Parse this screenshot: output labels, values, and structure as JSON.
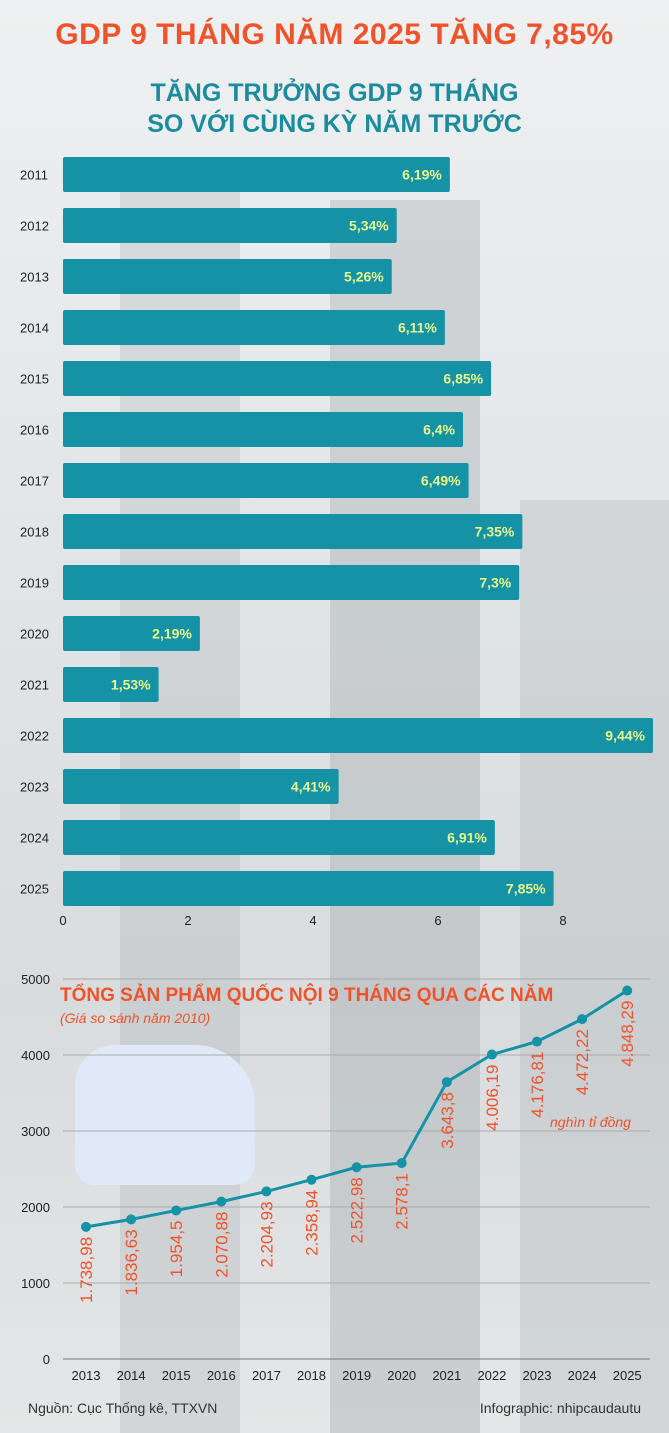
{
  "header": {
    "title": "GDP 9 THÁNG NĂM 2025 TĂNG 7,85%"
  },
  "colors": {
    "accent": "#f0532a",
    "teal": "#1592a6",
    "bar_label": "#e8f58a",
    "line": "#1592a6"
  },
  "chart_data": [
    {
      "type": "bar",
      "orientation": "horizontal",
      "title": "TĂNG TRƯỞNG GDP 9 THÁNG SO VỚI CÙNG KỲ NĂM TRƯỚC",
      "title_lines": [
        "TĂNG TRƯỞNG GDP 9 THÁNG",
        "SO VỚI CÙNG KỲ NĂM TRƯỚC"
      ],
      "categories": [
        "2011",
        "2012",
        "2013",
        "2014",
        "2015",
        "2016",
        "2017",
        "2018",
        "2019",
        "2020",
        "2021",
        "2022",
        "2023",
        "2024",
        "2025"
      ],
      "values": [
        6.19,
        5.34,
        5.26,
        6.11,
        6.85,
        6.4,
        6.49,
        7.35,
        7.3,
        2.19,
        1.53,
        9.44,
        4.41,
        6.91,
        7.85
      ],
      "data_labels": [
        "6,19%",
        "5,34%",
        "5,26%",
        "6,11%",
        "6,85%",
        "6,4%",
        "6,49%",
        "7,35%",
        "7,3%",
        "2,19%",
        "1,53%",
        "9,44%",
        "4,41%",
        "6,91%",
        "7,85%"
      ],
      "xticks": [
        "0",
        "2",
        "4",
        "6",
        "8"
      ],
      "xlim": [
        0,
        9.6
      ],
      "grid": false
    },
    {
      "type": "line",
      "title": "TỔNG SẢN PHẨM QUỐC NỘI 9 THÁNG QUA CÁC NĂM",
      "subtitle": "(Giá so sánh năm 2010)",
      "unit": "nghìn tỉ đồng",
      "x": [
        "2013",
        "2014",
        "2015",
        "2016",
        "2017",
        "2018",
        "2019",
        "2020",
        "2021",
        "2022",
        "2023",
        "2024",
        "2025"
      ],
      "values": [
        1738.98,
        1836.63,
        1954.5,
        2070.88,
        2204.93,
        2358.94,
        2522.98,
        2578.1,
        3643.8,
        4006.19,
        4176.81,
        4472.22,
        4848.29
      ],
      "data_labels": [
        "1.738,98",
        "1.836,63",
        "1.954,5",
        "2.070,88",
        "2.204,93",
        "2.358,94",
        "2.522,98",
        "2.578,1",
        "3.643,8",
        "4.006,19",
        "4.176,81",
        "4.472,22",
        "4.848,29"
      ],
      "yticks": [
        "0",
        "1000",
        "2000",
        "3000",
        "4000",
        "5000"
      ],
      "ylim": [
        0,
        5000
      ],
      "grid": true
    }
  ],
  "footer": {
    "source": "Nguồn: Cục Thống kê, TTXVN",
    "credit": "Infographic: nhipcaudautu"
  }
}
